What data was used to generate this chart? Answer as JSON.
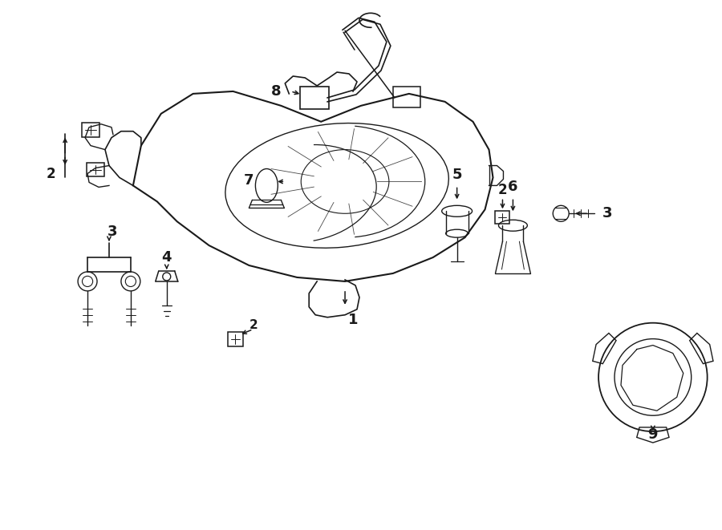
{
  "bg_color": "#ffffff",
  "line_color": "#1a1a1a",
  "fig_width": 9.0,
  "fig_height": 6.61,
  "dpi": 100,
  "xlim": [
    0,
    900
  ],
  "ylim": [
    0,
    661
  ]
}
